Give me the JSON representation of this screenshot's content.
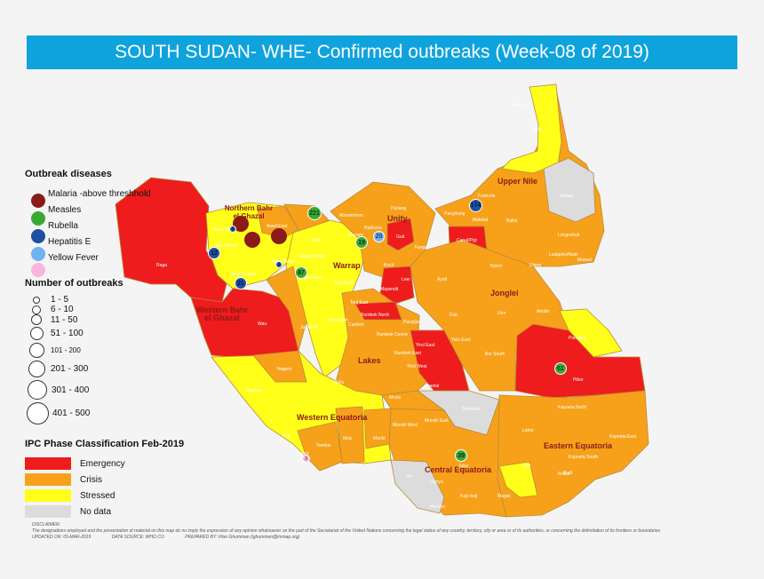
{
  "title": "SOUTH SUDAN- WHE-  Confirmed outbreaks (Week-08 of 2019)",
  "colors": {
    "emergency": "#ee1c1c",
    "crisis": "#f7a11a",
    "stressed": "#ffff1a",
    "nodata": "#dcdcdc",
    "malaria": "#8b1a1a",
    "measles": "#39a935",
    "rubella": "#1f4fa0",
    "hepatitis": "#6fb2ef",
    "yellow_fever": "#f7b5e0"
  },
  "legend": {
    "diseases_title": "Outbreak diseases",
    "diseases": [
      {
        "label": "Malaria -above threshhold",
        "icon": "mosquito-icon"
      },
      {
        "label": "Measles"
      },
      {
        "label": "Rubella"
      },
      {
        "label": "Hepatitis E"
      },
      {
        "label": "Yellow Fever"
      }
    ],
    "counts_title": "Number of outbreaks",
    "counts": [
      "1 - 5",
      "6 - 10",
      "11 - 50",
      "51 - 100",
      "101 - 200",
      "201 - 300",
      "301 - 400",
      "401 - 500"
    ],
    "ipc_title": "IPC Phase Classification Feb-2019",
    "ipc": [
      "Emergency",
      "Crisis",
      "Stressed",
      "No data"
    ]
  },
  "states": [
    {
      "label": "Upper Nile"
    },
    {
      "label": "Unity"
    },
    {
      "label": "Jonglei"
    },
    {
      "label": "Northern Bahr el Ghazal"
    },
    {
      "label": "Warrap"
    },
    {
      "label": "Western Bahr el Ghazal"
    },
    {
      "label": "Lakes"
    },
    {
      "label": "Western Equatoria"
    },
    {
      "label": "Central Equatoria"
    },
    {
      "label": "Eastern Equatoria"
    }
  ],
  "counties": [
    "Manyo",
    "Renk",
    "Maban",
    "Fashoda",
    "Panyikang",
    "Malakal",
    "Baliet",
    "Longochuk",
    "Luakpiny/Nasir",
    "Ulang",
    "Maiwut",
    "Canal/Pigi",
    "Fangak",
    "Panyijiar",
    "Guit",
    "Rubkona",
    "Mayom",
    "Pariang",
    "Abiemnhom",
    "Koch",
    "Leer",
    "Mayendit",
    "Ayod",
    "Nyirol",
    "Uror",
    "Akobo",
    "Pochalla",
    "Pibor",
    "Duk",
    "Twic East",
    "Bor South",
    "Raga",
    "Wau",
    "Jur River",
    "Aweil East",
    "Aweil North",
    "Aweil West",
    "Aweil South",
    "Aweil Centre",
    "Twic",
    "Gogrial West",
    "Gogrial East",
    "Tonj North",
    "Tonj East",
    "Tonj South",
    "Rumbek North",
    "Rumbek Centre",
    "Rumbek East",
    "Yirol East",
    "Yirol West",
    "Awerial",
    "Cueibet",
    "Wulu",
    "Nagero",
    "Tambura",
    "Ezo",
    "Yambio",
    "Nzara",
    "Ibba",
    "Maridi",
    "Mvolo",
    "Mundri West",
    "Mundri East",
    "Terekeka",
    "Juba",
    "Yei",
    "Lainya",
    "Morobo",
    "Kajo-keji",
    "Magwi",
    "Torit",
    "Ikotos",
    "Lafon",
    "Kapoeta North",
    "Kapoeta East",
    "Kapoeta South",
    "Budi"
  ],
  "outbreak_markers": [
    {
      "label": "221",
      "disease": "measles"
    },
    {
      "label": "19",
      "disease": "measles"
    },
    {
      "label": "20",
      "disease": "hepatitis"
    },
    {
      "label": "174",
      "disease": "rubella"
    },
    {
      "label": "87",
      "disease": "measles"
    },
    {
      "label": "12",
      "disease": "rubella"
    },
    {
      "label": "1",
      "disease": "rubella"
    },
    {
      "label": "1",
      "disease": "rubella"
    },
    {
      "label": "21",
      "disease": "rubella"
    },
    {
      "label": "61",
      "disease": "measles"
    },
    {
      "label": "39",
      "disease": "measles"
    },
    {
      "label": "3",
      "disease": "yellow_fever"
    }
  ],
  "footer": {
    "disclaimer_title": "DISCLAIMER:",
    "disclaimer": "The designations employed and the presentation of material on this map do no imply the expression of any opinion whatsoever on the part of the Secretariat of the United Nations concerning the legal status of any country, territory, city or area or of its authorities, or concerning the delimitation of its frontiers or boundaries",
    "updated": "UPDATED ON: 05-MAR-2019",
    "source": "DATA SOURCE: WHO CO",
    "prepared": "PREPARED BY: Irfan Ghumman (ighumman@immap.org)"
  }
}
